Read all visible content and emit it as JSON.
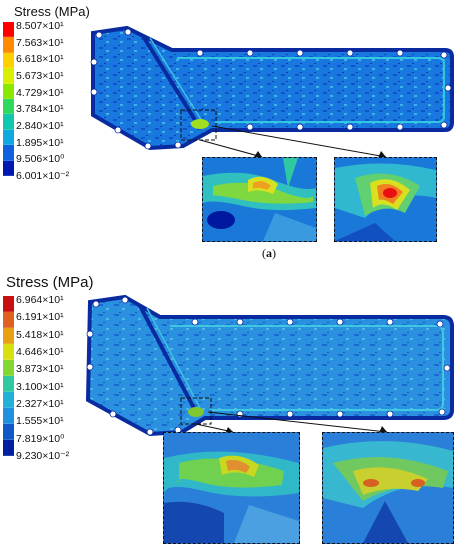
{
  "panels": [
    {
      "legend": {
        "title": "Stress (MPa)",
        "ticks": [
          "8.507×10¹",
          "7.563×10¹",
          "6.618×10¹",
          "5.673×10¹",
          "4.729×10¹",
          "3.784×10¹",
          "2.840×10¹",
          "1.895×10¹",
          "9.506×10⁰",
          "6.001×10⁻²"
        ],
        "colors": [
          "#ff0000",
          "#ff8a00",
          "#ffd000",
          "#d8f000",
          "#88e800",
          "#30d860",
          "#10c8b0",
          "#10a8e0",
          "#1060e0",
          "#0018b0"
        ]
      },
      "caption_open": "(",
      "caption_letter": "a",
      "caption_close": ")"
    },
    {
      "legend": {
        "title": "Stress (MPa)",
        "ticks": [
          "6.964×10¹",
          "6.191×10¹",
          "5.418×10¹",
          "4.646×10¹",
          "3.873×10¹",
          "3.100×10¹",
          "2.327×10¹",
          "1.555×10¹",
          "7.819×10⁰",
          "9.230×10⁻²"
        ],
        "colors": [
          "#c81010",
          "#e06020",
          "#e8a010",
          "#d8e010",
          "#80d830",
          "#30c8a0",
          "#20b0d8",
          "#2090e0",
          "#1058c8",
          "#0020a0"
        ]
      }
    }
  ]
}
